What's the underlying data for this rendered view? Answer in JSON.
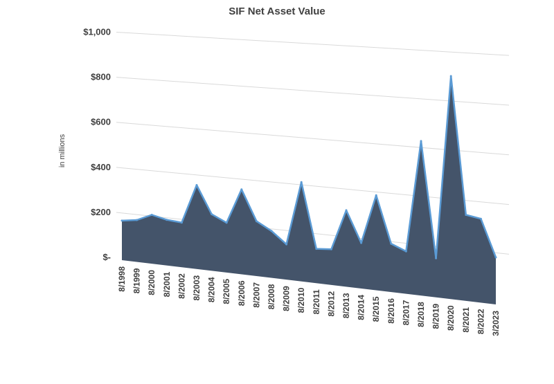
{
  "chart_data": {
    "type": "area",
    "title": "SIF Net Asset Value",
    "ylabel": "in millions",
    "xlabel": "",
    "ylim": [
      0,
      1000
    ],
    "yticks": [
      0,
      200,
      400,
      600,
      800,
      1000
    ],
    "ytick_labels": [
      "$-",
      "$200",
      "$400",
      "$600",
      "$800",
      "$1,000"
    ],
    "grid": true,
    "fill_color": "#44546a",
    "line_color": "#5b9bd5",
    "categories": [
      "8/1998",
      "8/1999",
      "8/2000",
      "8/2001",
      "8/2002",
      "8/2003",
      "8/2004",
      "8/2005",
      "8/2006",
      "8/2007",
      "8/2008",
      "8/2009",
      "8/2010",
      "8/2011",
      "8/2012",
      "8/2013",
      "8/2014",
      "8/2015",
      "8/2016",
      "8/2017",
      "8/2018",
      "8/2019",
      "8/2020",
      "8/2021",
      "8/2022",
      "3/2023"
    ],
    "values": [
      175,
      185,
      215,
      200,
      195,
      365,
      245,
      215,
      365,
      235,
      200,
      150,
      420,
      145,
      150,
      320,
      190,
      395,
      200,
      175,
      635,
      160,
      910,
      350,
      340,
      190
    ]
  }
}
